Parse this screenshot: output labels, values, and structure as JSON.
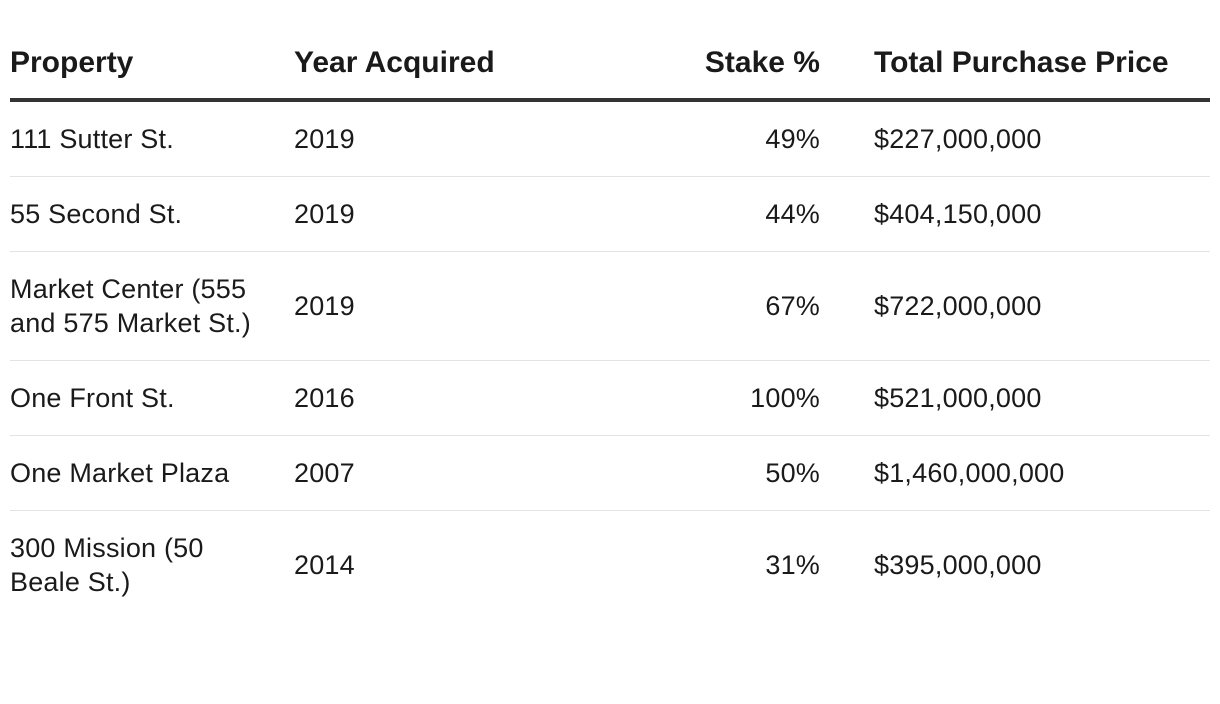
{
  "table": {
    "headers": {
      "property": "Property",
      "year": "Year Acquired",
      "stake": "Stake %",
      "price": "Total Purchase Price"
    },
    "rows": [
      {
        "property": "111 Sutter St.",
        "year": "2019",
        "stake": "49%",
        "price": "$227,000,000"
      },
      {
        "property": "55 Second St.",
        "year": "2019",
        "stake": "44%",
        "price": "$404,150,000"
      },
      {
        "property": "Market Center (555 and 575 Market St.)",
        "year": "2019",
        "stake": "67%",
        "price": "$722,000,000"
      },
      {
        "property": "One Front St.",
        "year": "2016",
        "stake": "100%",
        "price": "$521,000,000"
      },
      {
        "property": "One Market Plaza",
        "year": "2007",
        "stake": "50%",
        "price": "$1,460,000,000"
      },
      {
        "property": "300 Mission (50 Beale St.)",
        "year": "2014",
        "stake": "31%",
        "price": "$395,000,000"
      }
    ]
  }
}
